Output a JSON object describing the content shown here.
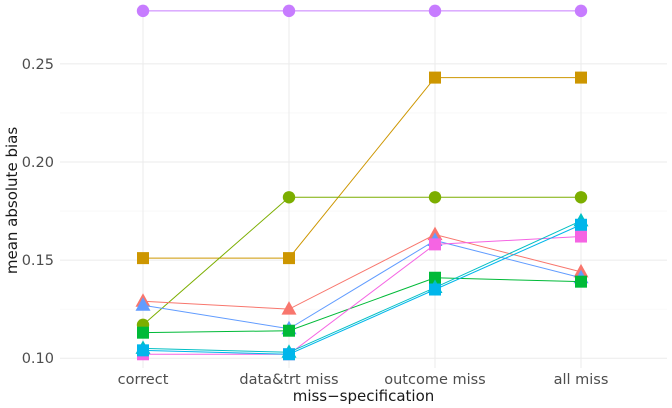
{
  "chart_data": {
    "type": "line",
    "title": "",
    "xlabel": "miss−specification",
    "ylabel": "mean absolute bias",
    "categories": [
      "correct",
      "data&trt miss",
      "outcome miss",
      "all miss"
    ],
    "ylim": [
      0.095,
      0.28
    ],
    "yticks": [
      0.1,
      0.15,
      0.2,
      0.25
    ],
    "ytick_labels": [
      "0.10",
      "0.15",
      "0.20",
      "0.25"
    ],
    "grid": true,
    "legend": "none",
    "series": [
      {
        "name": "violet-circle",
        "color": "#C77CFF",
        "marker": "circle",
        "values": [
          0.277,
          0.277,
          0.277,
          0.277
        ]
      },
      {
        "name": "gold-square",
        "color": "#CD9600",
        "marker": "square",
        "values": [
          0.151,
          0.151,
          0.243,
          0.243
        ]
      },
      {
        "name": "olive-circle",
        "color": "#7CAE00",
        "marker": "circle",
        "values": [
          0.117,
          0.182,
          0.182,
          0.182
        ]
      },
      {
        "name": "red-triangle",
        "color": "#F8766D",
        "marker": "triangle",
        "values": [
          0.129,
          0.125,
          0.163,
          0.144
        ]
      },
      {
        "name": "blue-triangle",
        "color": "#619CFF",
        "marker": "triangle",
        "values": [
          0.127,
          0.115,
          0.16,
          0.141
        ]
      },
      {
        "name": "green-square",
        "color": "#00BA38",
        "marker": "square",
        "values": [
          0.113,
          0.114,
          0.141,
          0.139
        ]
      },
      {
        "name": "pink-square",
        "color": "#F564E3",
        "marker": "square",
        "values": [
          0.102,
          0.102,
          0.158,
          0.162
        ]
      },
      {
        "name": "teal-triangle",
        "color": "#00BFC4",
        "marker": "triangle",
        "values": [
          0.105,
          0.103,
          0.136,
          0.17
        ]
      },
      {
        "name": "cyan-square",
        "color": "#00B6EB",
        "marker": "square",
        "values": [
          0.104,
          0.102,
          0.135,
          0.168
        ]
      }
    ]
  }
}
